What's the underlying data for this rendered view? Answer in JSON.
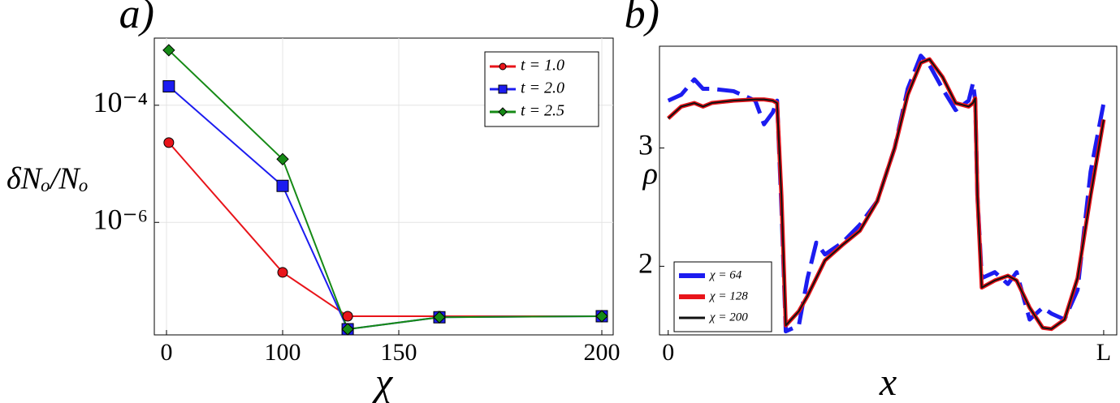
{
  "chart_data": [
    {
      "type": "line",
      "panel_label": "a)",
      "x_label": "χ",
      "y_label": "δNₒ/Nₒ",
      "x": [
        2,
        100,
        128,
        160,
        200
      ],
      "xlim": [
        -3,
        205
      ],
      "xticks": [
        0,
        100,
        150,
        200
      ],
      "ylim": [
        1.2e-08,
        0.0014
      ],
      "yscale": "log",
      "yticks": [
        {
          "value": 0.0001,
          "label": "10⁻⁴"
        },
        {
          "value": 1e-06,
          "label": "10⁻⁶"
        }
      ],
      "grid": true,
      "legend": "upper right",
      "series": [
        {
          "name": "t = 1.0",
          "color": "#e8141a",
          "marker": "circle",
          "values": [
            2.3e-05,
            1.4e-07,
            2.5e-08,
            2.5e-08,
            2.5e-08
          ]
        },
        {
          "name": "t = 2.0",
          "color": "#1c1cf0",
          "marker": "square",
          "values": [
            0.00021,
            4.2e-06,
            1.5e-08,
            2.4e-08,
            2.5e-08
          ]
        },
        {
          "name": "t = 2.5",
          "color": "#168a16",
          "marker": "diamond",
          "values": [
            0.00087,
            1.2e-05,
            1.5e-08,
            2.4e-08,
            2.5e-08
          ]
        }
      ]
    },
    {
      "type": "line",
      "panel_label": "b)",
      "x_label": "x",
      "y_label": "ρ",
      "x": [
        0,
        0.03,
        0.06,
        0.08,
        0.1,
        0.15,
        0.2,
        0.22,
        0.24,
        0.25,
        0.26,
        0.27,
        0.3,
        0.32,
        0.34,
        0.36,
        0.4,
        0.44,
        0.48,
        0.52,
        0.55,
        0.58,
        0.6,
        0.63,
        0.66,
        0.69,
        0.7,
        0.705,
        0.71,
        0.72,
        0.75,
        0.78,
        0.8,
        0.83,
        0.86,
        0.88,
        0.91,
        0.94,
        0.97,
        1.0
      ],
      "xlim": [
        -0.02,
        1.03
      ],
      "xticks": [
        0,
        {
          "value": 1,
          "label": "L"
        }
      ],
      "ylim": [
        1.42,
        3.86
      ],
      "yticks": [
        2,
        3
      ],
      "grid": false,
      "legend": "lower left",
      "series": [
        {
          "name": "χ = 64",
          "color": "#1c1cf0",
          "line_width": 5,
          "dashed": true,
          "values": [
            3.4,
            3.45,
            3.58,
            3.5,
            3.5,
            3.48,
            3.4,
            3.2,
            3.3,
            3.4,
            2.5,
            1.45,
            1.5,
            1.9,
            2.2,
            2.1,
            2.2,
            2.35,
            2.55,
            3.0,
            3.5,
            3.78,
            3.7,
            3.5,
            3.32,
            3.4,
            3.55,
            3.4,
            2.6,
            1.9,
            1.95,
            1.85,
            1.95,
            1.55,
            1.65,
            1.6,
            1.55,
            1.8,
            2.8,
            3.38
          ]
        },
        {
          "name": "χ = 128",
          "color": "#e8141a",
          "line_width": 5,
          "dashed": false,
          "values": [
            3.25,
            3.35,
            3.38,
            3.35,
            3.38,
            3.4,
            3.41,
            3.41,
            3.4,
            3.38,
            2.6,
            1.5,
            1.62,
            1.75,
            1.9,
            2.05,
            2.18,
            2.3,
            2.55,
            3.0,
            3.45,
            3.72,
            3.75,
            3.6,
            3.38,
            3.35,
            3.38,
            3.42,
            2.6,
            1.82,
            1.88,
            1.92,
            1.88,
            1.65,
            1.48,
            1.47,
            1.55,
            1.9,
            2.6,
            3.24
          ]
        },
        {
          "name": "χ = 200",
          "color": "#111111",
          "line_width": 2,
          "dashed": false,
          "values": [
            3.25,
            3.35,
            3.38,
            3.35,
            3.38,
            3.4,
            3.41,
            3.41,
            3.4,
            3.38,
            2.6,
            1.5,
            1.62,
            1.75,
            1.9,
            2.05,
            2.18,
            2.3,
            2.55,
            3.0,
            3.45,
            3.72,
            3.75,
            3.6,
            3.38,
            3.35,
            3.38,
            3.42,
            2.6,
            1.82,
            1.88,
            1.92,
            1.88,
            1.65,
            1.48,
            1.47,
            1.55,
            1.9,
            2.6,
            3.24
          ]
        }
      ]
    }
  ]
}
